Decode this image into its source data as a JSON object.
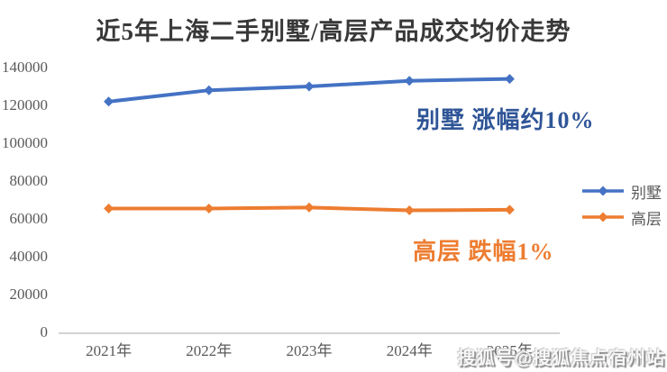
{
  "chart_data": {
    "type": "line",
    "title": "近5年上海二手别墅/高层产品成交均价走势",
    "categories": [
      "2021年",
      "2022年",
      "2023年",
      "2024年",
      "2025年"
    ],
    "series": [
      {
        "key": "villa",
        "name": "别墅",
        "color": "#4472C4",
        "values": [
          122000,
          128000,
          130000,
          133000,
          134000
        ]
      },
      {
        "key": "highrise",
        "name": "高层",
        "color": "#ED7D31",
        "values": [
          65500,
          65500,
          66000,
          64500,
          64800
        ]
      }
    ],
    "ylim": [
      0,
      140000
    ],
    "y_ticks": [
      140000,
      120000,
      100000,
      80000,
      60000,
      40000,
      20000,
      0
    ],
    "xlabel": "",
    "ylabel": "",
    "grid": false,
    "marker": "diamond",
    "legend_position": "right",
    "annotations": [
      {
        "key": "villa",
        "text": "别墅 涨幅约10%",
        "color": "#2F5597"
      },
      {
        "key": "highrise",
        "text": "高层 跌幅1%",
        "color": "#ED7D31"
      }
    ]
  },
  "watermark": {
    "text": "搜狐号@搜狐焦点宿州站"
  }
}
